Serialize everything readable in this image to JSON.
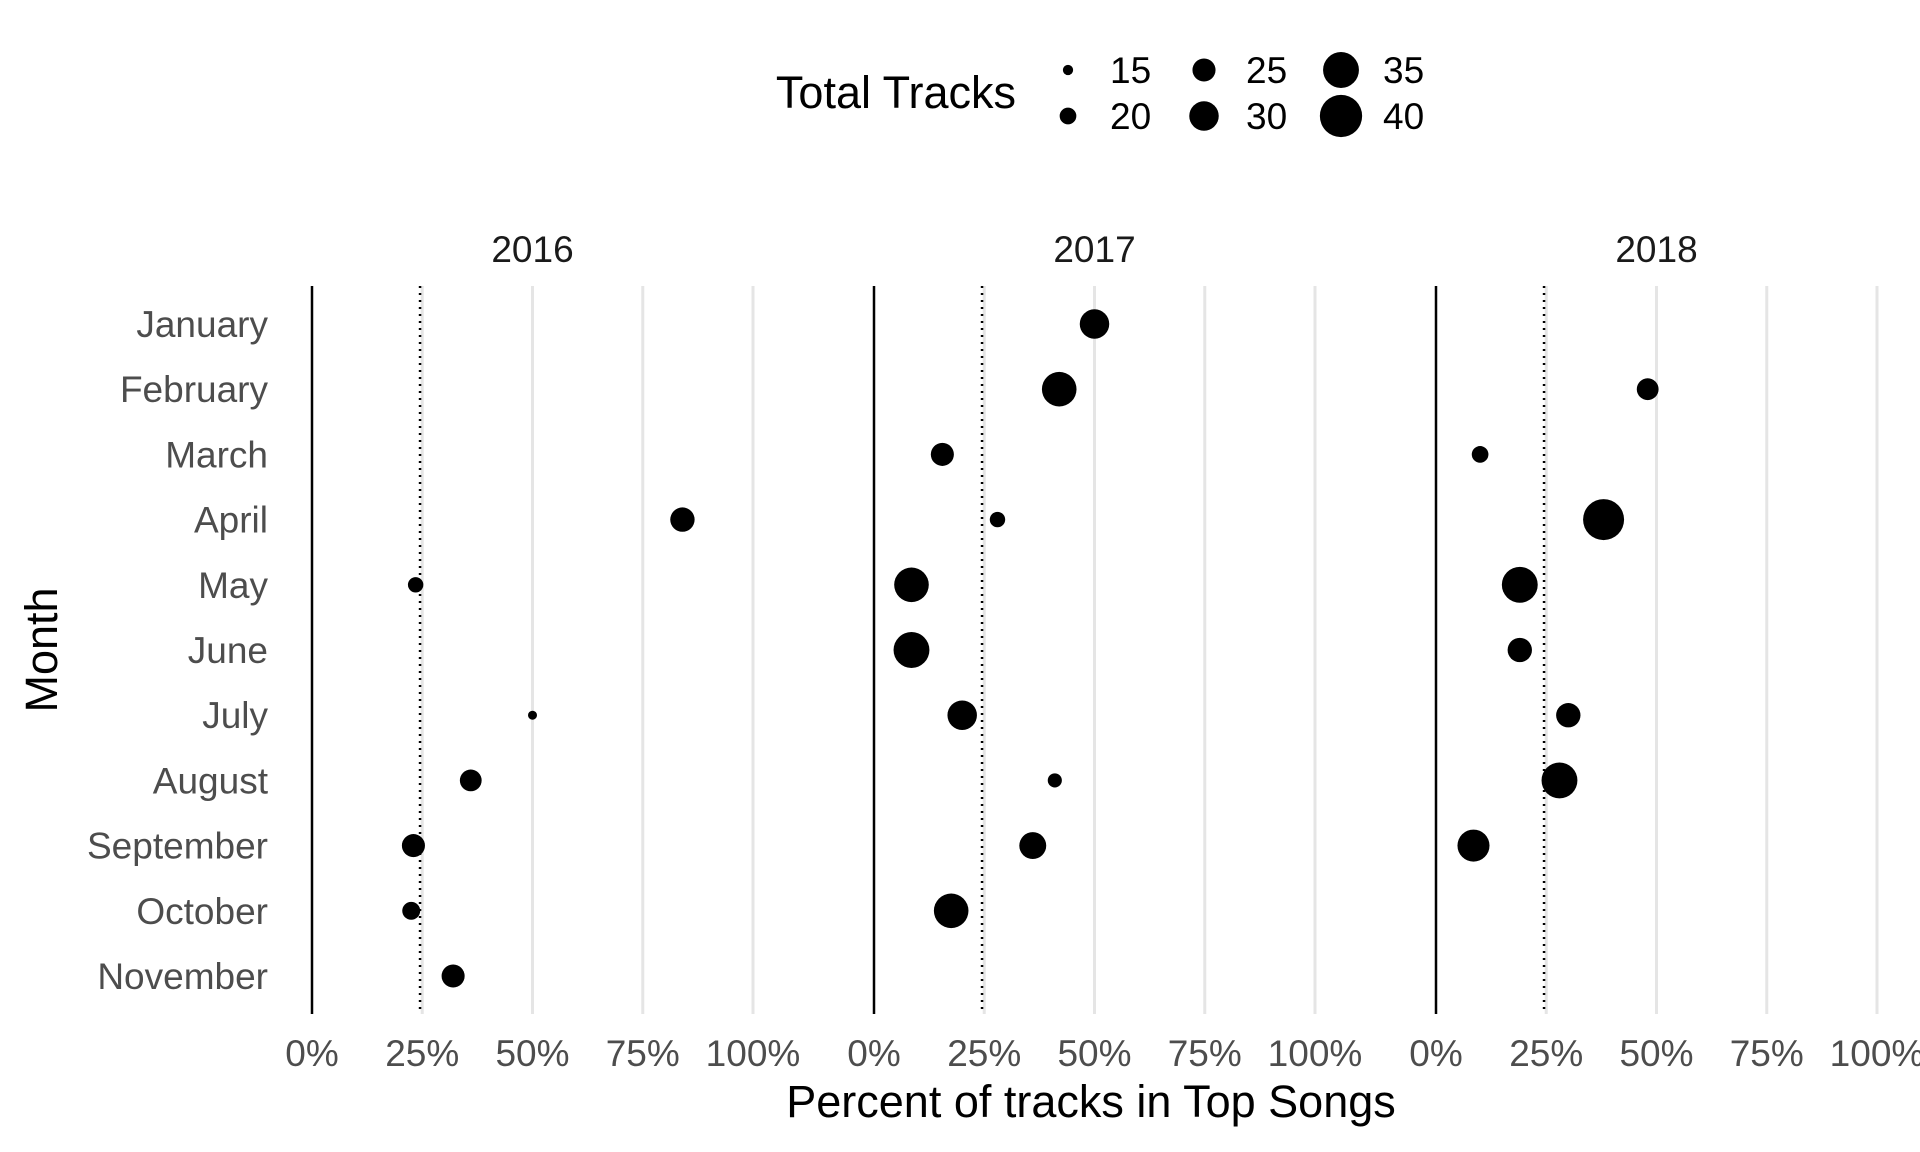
{
  "chart_data": {
    "type": "scatter",
    "title": "",
    "xlabel": "Percent of tracks in Top Songs",
    "ylabel": "Month",
    "xlim": [
      0,
      100
    ],
    "x_ticks": [
      "0%",
      "25%",
      "50%",
      "75%",
      "100%"
    ],
    "reference_line": 24.5,
    "months": [
      "January",
      "February",
      "March",
      "April",
      "May",
      "June",
      "July",
      "August",
      "September",
      "October",
      "November"
    ],
    "legend": {
      "title": "Total Tracks",
      "position": "top",
      "sizes": [
        "15",
        "20",
        "25",
        "30",
        "35",
        "40"
      ]
    },
    "panels": [
      {
        "label": "2016",
        "points": [
          {
            "month": "April",
            "x": 84,
            "tracks": 26
          },
          {
            "month": "May",
            "x": 23.5,
            "tracks": 19
          },
          {
            "month": "July",
            "x": 50,
            "tracks": 14
          },
          {
            "month": "August",
            "x": 36,
            "tracks": 24
          },
          {
            "month": "September",
            "x": 23,
            "tracks": 25
          },
          {
            "month": "October",
            "x": 22.5,
            "tracks": 21
          },
          {
            "month": "November",
            "x": 32,
            "tracks": 25
          }
        ]
      },
      {
        "label": "2017",
        "points": [
          {
            "month": "January",
            "x": 50,
            "tracks": 30
          },
          {
            "month": "February",
            "x": 42,
            "tracks": 34
          },
          {
            "month": "March",
            "x": 15.5,
            "tracks": 25
          },
          {
            "month": "April",
            "x": 28,
            "tracks": 19
          },
          {
            "month": "May",
            "x": 8.5,
            "tracks": 34
          },
          {
            "month": "June",
            "x": 8.5,
            "tracks": 35
          },
          {
            "month": "July",
            "x": 20,
            "tracks": 30
          },
          {
            "month": "August",
            "x": 41,
            "tracks": 18
          },
          {
            "month": "September",
            "x": 36,
            "tracks": 28
          },
          {
            "month": "October",
            "x": 17.5,
            "tracks": 34
          }
        ]
      },
      {
        "label": "2018",
        "points": [
          {
            "month": "February",
            "x": 48,
            "tracks": 24
          },
          {
            "month": "March",
            "x": 10,
            "tracks": 20
          },
          {
            "month": "April",
            "x": 38,
            "tracks": 39
          },
          {
            "month": "May",
            "x": 19,
            "tracks": 35
          },
          {
            "month": "June",
            "x": 19,
            "tracks": 26
          },
          {
            "month": "July",
            "x": 30,
            "tracks": 26
          },
          {
            "month": "August",
            "x": 28,
            "tracks": 35
          },
          {
            "month": "September",
            "x": 8.5,
            "tracks": 32
          }
        ]
      }
    ]
  }
}
